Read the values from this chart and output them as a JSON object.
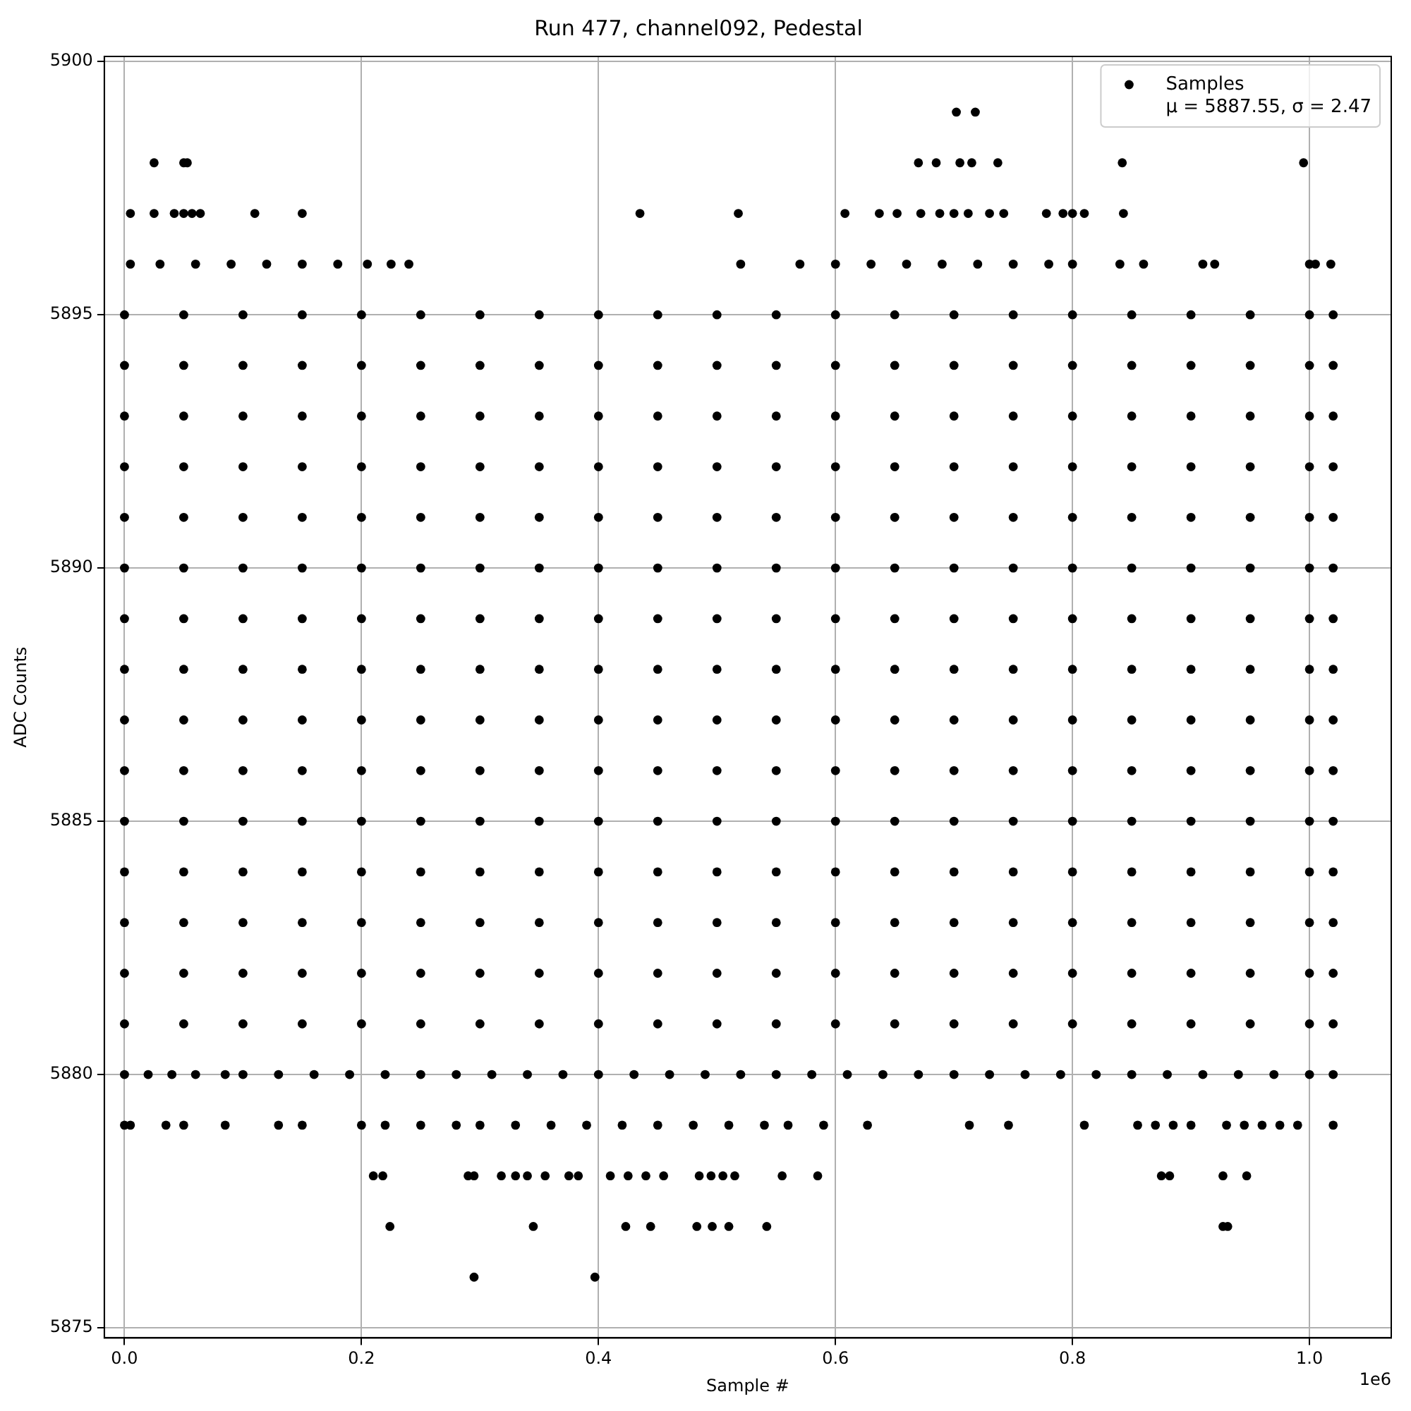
{
  "chart_data": {
    "type": "scatter",
    "title": "Run 477, channel092, Pedestal",
    "xlabel": "Sample #",
    "ylabel": "ADC Counts",
    "xlim": [
      -0.017,
      1.069
    ],
    "ylim": [
      5874.8,
      5900.1
    ],
    "xticks": [
      {
        "value": 0,
        "label": "0.0"
      },
      {
        "value": 0.2,
        "label": "0.2"
      },
      {
        "value": 0.4,
        "label": "0.4"
      },
      {
        "value": 0.6,
        "label": "0.6"
      },
      {
        "value": 0.8,
        "label": "0.8"
      },
      {
        "value": 1,
        "label": "1.0"
      }
    ],
    "yticks": [
      5875,
      5880,
      5885,
      5890,
      5895,
      5900
    ],
    "grid": true,
    "legend": "top right",
    "marker": "circle",
    "annotations": [
      "1e6"
    ],
    "series": [
      {
        "name": "Samples\nμ = 5887.55, σ = 2.47",
        "color": "#000000",
        "x": [
          0,
          0.05,
          0.1,
          0.15,
          0.2,
          0.25,
          0.3,
          0.35,
          0.4,
          0.45,
          0.5,
          0.55,
          0.6,
          0.65,
          0.7,
          0.75,
          0.8,
          0.85,
          0.9,
          0.95,
          1,
          1.02,
          0,
          0.05,
          0.1,
          0.15,
          0.2,
          0.25,
          0.3,
          0.35,
          0.4,
          0.45,
          0.5,
          0.55,
          0.6,
          0.65,
          0.7,
          0.75,
          0.8,
          0.85,
          0.9,
          0.95,
          1,
          1.02,
          0,
          0.05,
          0.1,
          0.15,
          0.2,
          0.25,
          0.3,
          0.35,
          0.4,
          0.45,
          0.5,
          0.55,
          0.6,
          0.65,
          0.7,
          0.75,
          0.8,
          0.85,
          0.9,
          0.95,
          1,
          1.02,
          0,
          0.05,
          0.1,
          0.15,
          0.2,
          0.25,
          0.3,
          0.35,
          0.4,
          0.45,
          0.5,
          0.55,
          0.6,
          0.65,
          0.7,
          0.75,
          0.8,
          0.85,
          0.9,
          0.95,
          1,
          1.02,
          0,
          0.05,
          0.1,
          0.15,
          0.2,
          0.25,
          0.3,
          0.35,
          0.4,
          0.45,
          0.5,
          0.55,
          0.6,
          0.65,
          0.7,
          0.75,
          0.8,
          0.85,
          0.9,
          0.95,
          1,
          1.02,
          0,
          0.05,
          0.1,
          0.15,
          0.2,
          0.25,
          0.3,
          0.35,
          0.4,
          0.45,
          0.5,
          0.55,
          0.6,
          0.65,
          0.7,
          0.75,
          0.8,
          0.85,
          0.9,
          0.95,
          1,
          1.02,
          0,
          0.05,
          0.1,
          0.15,
          0.2,
          0.25,
          0.3,
          0.35,
          0.4,
          0.45,
          0.5,
          0.55,
          0.6,
          0.65,
          0.7,
          0.75,
          0.8,
          0.85,
          0.9,
          0.95,
          1,
          1.02,
          0,
          0.05,
          0.1,
          0.15,
          0.2,
          0.25,
          0.3,
          0.35,
          0.4,
          0.45,
          0.5,
          0.55,
          0.6,
          0.65,
          0.7,
          0.75,
          0.8,
          0.85,
          0.9,
          0.95,
          1,
          1.02,
          0,
          0.05,
          0.1,
          0.15,
          0.2,
          0.25,
          0.3,
          0.35,
          0.4,
          0.45,
          0.5,
          0.55,
          0.6,
          0.65,
          0.7,
          0.75,
          0.8,
          0.85,
          0.9,
          0.95,
          1,
          1.02,
          0,
          0.05,
          0.1,
          0.15,
          0.2,
          0.25,
          0.3,
          0.35,
          0.4,
          0.45,
          0.5,
          0.55,
          0.6,
          0.65,
          0.7,
          0.75,
          0.8,
          0.85,
          0.9,
          0.95,
          1,
          1.02,
          0,
          0.05,
          0.1,
          0.15,
          0.2,
          0.25,
          0.3,
          0.35,
          0.4,
          0.45,
          0.5,
          0.55,
          0.6,
          0.65,
          0.7,
          0.75,
          0.8,
          0.85,
          0.9,
          0.95,
          1,
          1.02,
          0,
          0.05,
          0.1,
          0.15,
          0.2,
          0.25,
          0.3,
          0.35,
          0.4,
          0.45,
          0.5,
          0.55,
          0.6,
          0.65,
          0.7,
          0.75,
          0.8,
          0.85,
          0.9,
          0.95,
          1,
          1.02,
          0,
          0.05,
          0.1,
          0.15,
          0.2,
          0.25,
          0.3,
          0.35,
          0.4,
          0.45,
          0.5,
          0.55,
          0.6,
          0.65,
          0.7,
          0.75,
          0.8,
          0.85,
          0.9,
          0.95,
          1,
          1.02,
          0,
          0.05,
          0.1,
          0.15,
          0.2,
          0.25,
          0.3,
          0.35,
          0.4,
          0.45,
          0.5,
          0.55,
          0.6,
          0.65,
          0.7,
          0.75,
          0.8,
          0.85,
          0.9,
          0.95,
          1,
          1.02,
          0,
          0.05,
          0.1,
          0.15,
          0.2,
          0.25,
          0.3,
          0.35,
          0.4,
          0.45,
          0.5,
          0.55,
          0.6,
          0.65,
          0.7,
          0.75,
          0.8,
          0.85,
          0.9,
          0.95,
          1,
          1.02,
          0.005,
          0.03,
          0.06,
          0.09,
          0.12,
          0.15,
          0.18,
          0.205,
          0.225,
          0.24,
          0.52,
          0.57,
          0.6,
          0.63,
          0.66,
          0.69,
          0.72,
          0.75,
          0.78,
          0.8,
          0.84,
          0.86,
          0.91,
          0.92,
          1,
          1.005,
          1.018,
          0.005,
          0.025,
          0.042,
          0.05,
          0.057,
          0.064,
          0.11,
          0.15,
          0.435,
          0.518,
          0.608,
          0.637,
          0.652,
          0.672,
          0.688,
          0.7,
          0.712,
          0.73,
          0.742,
          0.778,
          0.792,
          0.8,
          0.81,
          0.843,
          0.025,
          0.05,
          0.053,
          0.67,
          0.685,
          0.705,
          0.715,
          0.737,
          0.842,
          0.995,
          0.702,
          0.718,
          0,
          0.02,
          0.04,
          0.06,
          0.085,
          0.1,
          0.13,
          0.16,
          0.19,
          0.22,
          0.25,
          0.28,
          0.31,
          0.34,
          0.37,
          0.4,
          0.43,
          0.46,
          0.49,
          0.52,
          0.55,
          0.58,
          0.61,
          0.64,
          0.67,
          0.7,
          0.73,
          0.76,
          0.79,
          0.82,
          0.85,
          0.88,
          0.91,
          0.94,
          0.97,
          1,
          1.02,
          0,
          0.005,
          0.035,
          0.05,
          0.085,
          0.13,
          0.15,
          0.2,
          0.22,
          0.25,
          0.28,
          0.3,
          0.33,
          0.36,
          0.39,
          0.42,
          0.45,
          0.48,
          0.51,
          0.54,
          0.56,
          0.59,
          0.627,
          0.713,
          0.746,
          0.81,
          0.855,
          0.87,
          0.885,
          0.9,
          0.93,
          0.945,
          0.96,
          0.975,
          0.99,
          1.02,
          0.21,
          0.218,
          0.29,
          0.295,
          0.318,
          0.33,
          0.34,
          0.355,
          0.375,
          0.383,
          0.41,
          0.425,
          0.44,
          0.455,
          0.485,
          0.495,
          0.505,
          0.515,
          0.555,
          0.585,
          0.875,
          0.882,
          0.927,
          0.947,
          0.224,
          0.345,
          0.423,
          0.444,
          0.483,
          0.496,
          0.51,
          0.542,
          0.927,
          0.931,
          0.295,
          0.397
        ],
        "values": [
          5881,
          5881,
          5881,
          5881,
          5881,
          5881,
          5881,
          5881,
          5881,
          5881,
          5881,
          5881,
          5881,
          5881,
          5881,
          5881,
          5881,
          5881,
          5881,
          5881,
          5881,
          5881,
          5882,
          5882,
          5882,
          5882,
          5882,
          5882,
          5882,
          5882,
          5882,
          5882,
          5882,
          5882,
          5882,
          5882,
          5882,
          5882,
          5882,
          5882,
          5882,
          5882,
          5882,
          5882,
          5883,
          5883,
          5883,
          5883,
          5883,
          5883,
          5883,
          5883,
          5883,
          5883,
          5883,
          5883,
          5883,
          5883,
          5883,
          5883,
          5883,
          5883,
          5883,
          5883,
          5883,
          5883,
          5884,
          5884,
          5884,
          5884,
          5884,
          5884,
          5884,
          5884,
          5884,
          5884,
          5884,
          5884,
          5884,
          5884,
          5884,
          5884,
          5884,
          5884,
          5884,
          5884,
          5884,
          5884,
          5885,
          5885,
          5885,
          5885,
          5885,
          5885,
          5885,
          5885,
          5885,
          5885,
          5885,
          5885,
          5885,
          5885,
          5885,
          5885,
          5885,
          5885,
          5885,
          5885,
          5885,
          5885,
          5886,
          5886,
          5886,
          5886,
          5886,
          5886,
          5886,
          5886,
          5886,
          5886,
          5886,
          5886,
          5886,
          5886,
          5886,
          5886,
          5886,
          5886,
          5886,
          5886,
          5886,
          5886,
          5887,
          5887,
          5887,
          5887,
          5887,
          5887,
          5887,
          5887,
          5887,
          5887,
          5887,
          5887,
          5887,
          5887,
          5887,
          5887,
          5887,
          5887,
          5887,
          5887,
          5887,
          5887,
          5888,
          5888,
          5888,
          5888,
          5888,
          5888,
          5888,
          5888,
          5888,
          5888,
          5888,
          5888,
          5888,
          5888,
          5888,
          5888,
          5888,
          5888,
          5888,
          5888,
          5888,
          5888,
          5889,
          5889,
          5889,
          5889,
          5889,
          5889,
          5889,
          5889,
          5889,
          5889,
          5889,
          5889,
          5889,
          5889,
          5889,
          5889,
          5889,
          5889,
          5889,
          5889,
          5889,
          5889,
          5890,
          5890,
          5890,
          5890,
          5890,
          5890,
          5890,
          5890,
          5890,
          5890,
          5890,
          5890,
          5890,
          5890,
          5890,
          5890,
          5890,
          5890,
          5890,
          5890,
          5890,
          5890,
          5891,
          5891,
          5891,
          5891,
          5891,
          5891,
          5891,
          5891,
          5891,
          5891,
          5891,
          5891,
          5891,
          5891,
          5891,
          5891,
          5891,
          5891,
          5891,
          5891,
          5891,
          5891,
          5892,
          5892,
          5892,
          5892,
          5892,
          5892,
          5892,
          5892,
          5892,
          5892,
          5892,
          5892,
          5892,
          5892,
          5892,
          5892,
          5892,
          5892,
          5892,
          5892,
          5892,
          5892,
          5893,
          5893,
          5893,
          5893,
          5893,
          5893,
          5893,
          5893,
          5893,
          5893,
          5893,
          5893,
          5893,
          5893,
          5893,
          5893,
          5893,
          5893,
          5893,
          5893,
          5893,
          5893,
          5894,
          5894,
          5894,
          5894,
          5894,
          5894,
          5894,
          5894,
          5894,
          5894,
          5894,
          5894,
          5894,
          5894,
          5894,
          5894,
          5894,
          5894,
          5894,
          5894,
          5894,
          5894,
          5895,
          5895,
          5895,
          5895,
          5895,
          5895,
          5895,
          5895,
          5895,
          5895,
          5895,
          5895,
          5895,
          5895,
          5895,
          5895,
          5895,
          5895,
          5895,
          5895,
          5895,
          5895,
          5896,
          5896,
          5896,
          5896,
          5896,
          5896,
          5896,
          5896,
          5896,
          5896,
          5896,
          5896,
          5896,
          5896,
          5896,
          5896,
          5896,
          5896,
          5896,
          5896,
          5896,
          5896,
          5896,
          5896,
          5896,
          5896,
          5896,
          5897,
          5897,
          5897,
          5897,
          5897,
          5897,
          5897,
          5897,
          5897,
          5897,
          5897,
          5897,
          5897,
          5897,
          5897,
          5897,
          5897,
          5897,
          5897,
          5897,
          5897,
          5897,
          5897,
          5897,
          5898,
          5898,
          5898,
          5898,
          5898,
          5898,
          5898,
          5898,
          5898,
          5898,
          5899,
          5899,
          5880,
          5880,
          5880,
          5880,
          5880,
          5880,
          5880,
          5880,
          5880,
          5880,
          5880,
          5880,
          5880,
          5880,
          5880,
          5880,
          5880,
          5880,
          5880,
          5880,
          5880,
          5880,
          5880,
          5880,
          5880,
          5880,
          5880,
          5880,
          5880,
          5880,
          5880,
          5880,
          5880,
          5880,
          5880,
          5880,
          5880,
          5879,
          5879,
          5879,
          5879,
          5879,
          5879,
          5879,
          5879,
          5879,
          5879,
          5879,
          5879,
          5879,
          5879,
          5879,
          5879,
          5879,
          5879,
          5879,
          5879,
          5879,
          5879,
          5879,
          5879,
          5879,
          5879,
          5879,
          5879,
          5879,
          5879,
          5879,
          5879,
          5879,
          5879,
          5879,
          5879,
          5878,
          5878,
          5878,
          5878,
          5878,
          5878,
          5878,
          5878,
          5878,
          5878,
          5878,
          5878,
          5878,
          5878,
          5878,
          5878,
          5878,
          5878,
          5878,
          5878,
          5878,
          5878,
          5878,
          5878,
          5877,
          5877,
          5877,
          5877,
          5877,
          5877,
          5877,
          5877,
          5877,
          5877,
          5876,
          5876
        ]
      }
    ]
  }
}
